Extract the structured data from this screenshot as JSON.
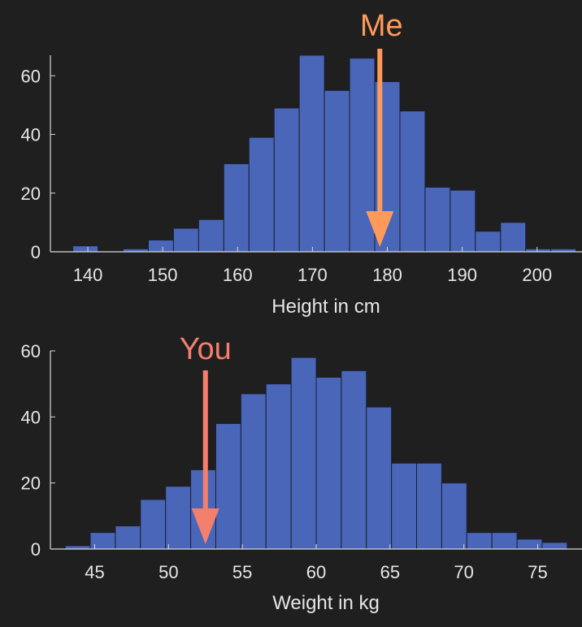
{
  "colors": {
    "background": "#1f1f1f",
    "bar_fill": "#4a66b8",
    "bar_stroke": "#1a1f33",
    "axis": "#d8d8d8",
    "text": "#e6e6e6",
    "me_arrow": "#ff9a5a",
    "you_arrow": "#f47f6c"
  },
  "chart_data": [
    {
      "type": "bar",
      "title": "",
      "xlabel": "Height in cm",
      "ylabel": "",
      "xlim": [
        135,
        206
      ],
      "ylim": [
        0,
        67
      ],
      "yticks": [
        0,
        20,
        40,
        60
      ],
      "xticks": [
        140,
        150,
        160,
        170,
        180,
        190,
        200
      ],
      "bin_width": 3.36,
      "bin_edges_start": 138.0,
      "values": [
        2,
        0,
        1,
        4,
        8,
        11,
        30,
        39,
        49,
        67,
        55,
        66,
        58,
        48,
        22,
        21,
        7,
        10,
        1,
        1
      ],
      "annotation": {
        "label": "Me",
        "x": 179,
        "color": "me_arrow"
      }
    },
    {
      "type": "bar",
      "title": "",
      "xlabel": "Weight in kg",
      "ylabel": "",
      "xlim": [
        42,
        78
      ],
      "ylim": [
        0,
        60
      ],
      "yticks": [
        0,
        20,
        40,
        60
      ],
      "xticks": [
        45,
        50,
        55,
        60,
        65,
        70,
        75
      ],
      "bin_width": 1.7,
      "bin_edges_start": 43.0,
      "values": [
        1,
        5,
        7,
        15,
        19,
        24,
        38,
        47,
        50,
        58,
        52,
        54,
        43,
        26,
        26,
        20,
        5,
        5,
        3,
        2
      ],
      "annotation": {
        "label": "You",
        "x": 52.5,
        "color": "you_arrow"
      }
    }
  ]
}
